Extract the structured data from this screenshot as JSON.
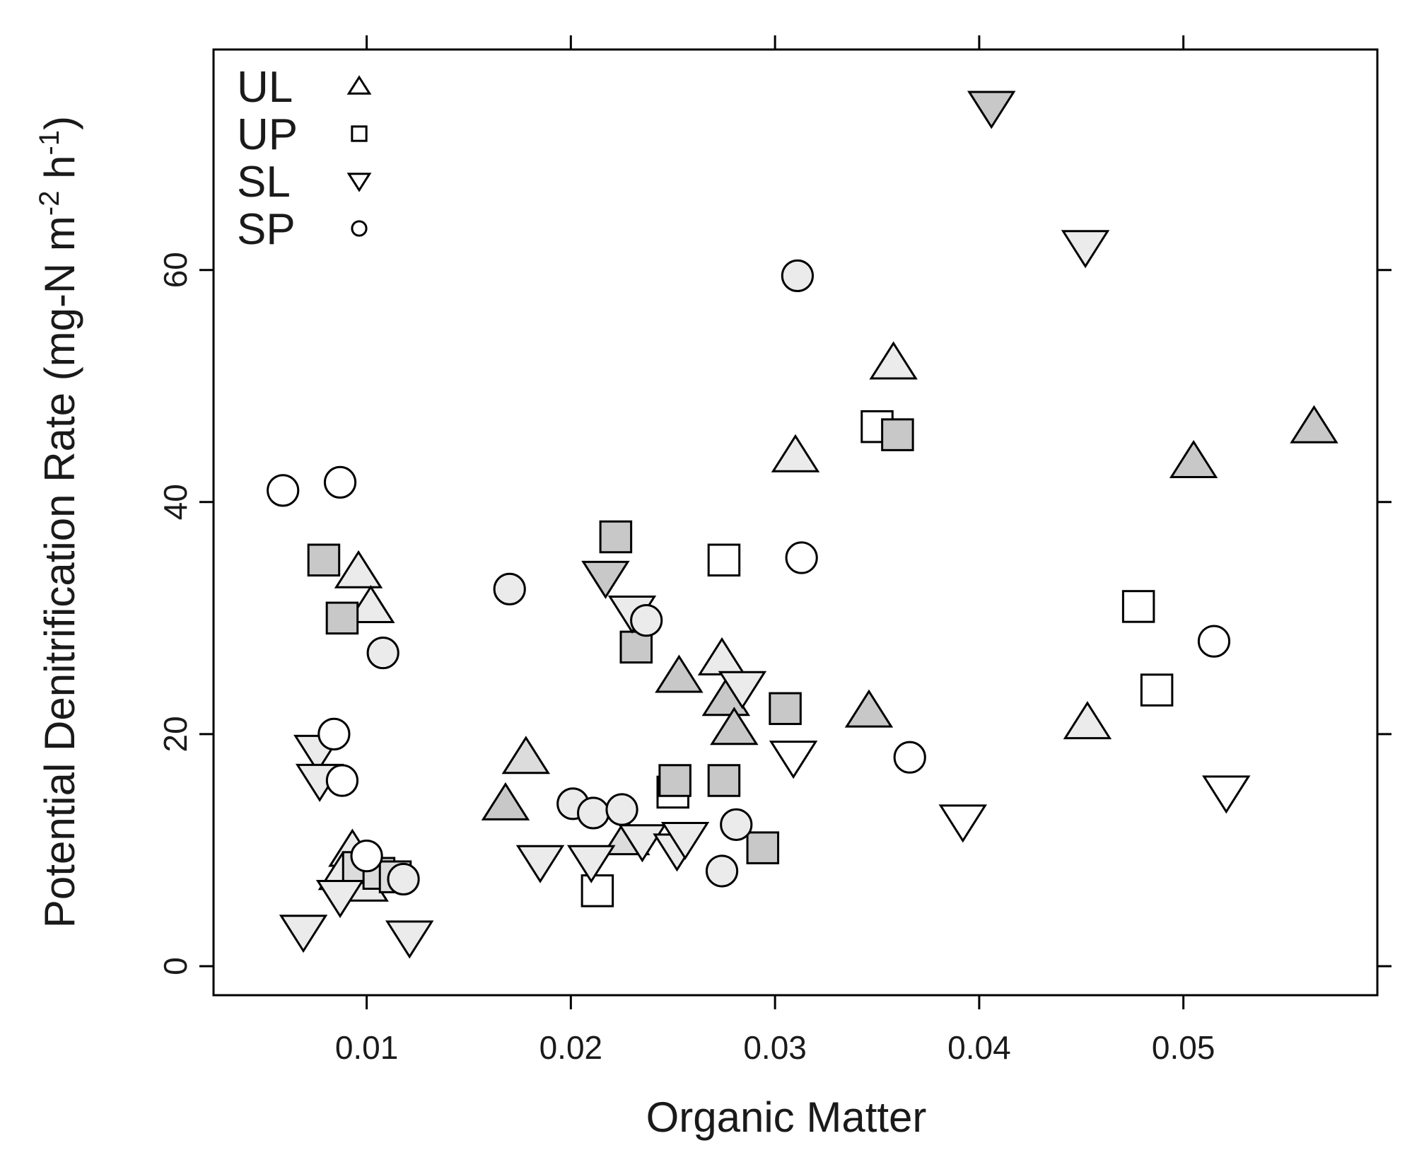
{
  "chart_data": {
    "type": "scatter",
    "xlabel": "Organic Matter",
    "ylabel": "Potential Denitrification Rate (mg-N m",
    "ylabel_sup1": "-2",
    "ylabel_mid": " h",
    "ylabel_sup2": "-1",
    "ylabel_end": ")",
    "xlim": [
      0.0025,
      0.0595
    ],
    "ylim": [
      -2.5,
      79
    ],
    "x_ticks": [
      0.01,
      0.02,
      0.03,
      0.04,
      0.05
    ],
    "x_tick_labels": [
      "0.01",
      "0.02",
      "0.03",
      "0.04",
      "0.05"
    ],
    "y_ticks": [
      0,
      20,
      40,
      60
    ],
    "y_tick_labels": [
      "0",
      "20",
      "40",
      "60"
    ],
    "grid": false,
    "legend_position": "top-left",
    "legend": [
      {
        "label": "UL",
        "shape": "triangle-up"
      },
      {
        "label": "UP",
        "shape": "square"
      },
      {
        "label": "SL",
        "shape": "triangle-down"
      },
      {
        "label": "SP",
        "shape": "circle"
      }
    ],
    "fill_colors": {
      "dark": "#c8c8c8",
      "medium": "#dcdcdc",
      "light": "#ebebeb",
      "white": "#ffffff"
    },
    "series": [
      {
        "name": "UL",
        "shape": "triangle-up",
        "points": [
          {
            "x": 0.0096,
            "y": 34,
            "fill": "light"
          },
          {
            "x": 0.0102,
            "y": 31,
            "fill": "light"
          },
          {
            "x": 0.0093,
            "y": 10,
            "fill": "light"
          },
          {
            "x": 0.0088,
            "y": 8,
            "fill": "light"
          },
          {
            "x": 0.0099,
            "y": 7,
            "fill": "light"
          },
          {
            "x": 0.0168,
            "y": 14,
            "fill": "dark"
          },
          {
            "x": 0.0178,
            "y": 18,
            "fill": "medium"
          },
          {
            "x": 0.0227,
            "y": 11,
            "fill": "medium"
          },
          {
            "x": 0.0253,
            "y": 25,
            "fill": "dark"
          },
          {
            "x": 0.0274,
            "y": 26.5,
            "fill": "light"
          },
          {
            "x": 0.0276,
            "y": 23,
            "fill": "dark"
          },
          {
            "x": 0.028,
            "y": 20.5,
            "fill": "dark"
          },
          {
            "x": 0.031,
            "y": 44,
            "fill": "light"
          },
          {
            "x": 0.0346,
            "y": 22,
            "fill": "dark"
          },
          {
            "x": 0.0358,
            "y": 52,
            "fill": "light"
          },
          {
            "x": 0.0453,
            "y": 21,
            "fill": "light"
          },
          {
            "x": 0.0505,
            "y": 43.5,
            "fill": "dark"
          },
          {
            "x": 0.0564,
            "y": 46.5,
            "fill": "dark"
          }
        ]
      },
      {
        "name": "UP",
        "shape": "square",
        "points": [
          {
            "x": 0.0079,
            "y": 35,
            "fill": "dark"
          },
          {
            "x": 0.0088,
            "y": 30,
            "fill": "dark"
          },
          {
            "x": 0.0096,
            "y": 8.5,
            "fill": "medium"
          },
          {
            "x": 0.0106,
            "y": 8,
            "fill": "medium"
          },
          {
            "x": 0.0114,
            "y": 7.7,
            "fill": "medium"
          },
          {
            "x": 0.0213,
            "y": 6.5,
            "fill": "white"
          },
          {
            "x": 0.0222,
            "y": 37,
            "fill": "dark"
          },
          {
            "x": 0.0232,
            "y": 27.5,
            "fill": "dark"
          },
          {
            "x": 0.025,
            "y": 15,
            "fill": "white"
          },
          {
            "x": 0.0251,
            "y": 16,
            "fill": "dark"
          },
          {
            "x": 0.0275,
            "y": 35,
            "fill": "white"
          },
          {
            "x": 0.0275,
            "y": 16,
            "fill": "dark"
          },
          {
            "x": 0.0294,
            "y": 10.2,
            "fill": "dark"
          },
          {
            "x": 0.0305,
            "y": 22.2,
            "fill": "dark"
          },
          {
            "x": 0.035,
            "y": 46.5,
            "fill": "white"
          },
          {
            "x": 0.036,
            "y": 45.8,
            "fill": "dark"
          },
          {
            "x": 0.0478,
            "y": 31,
            "fill": "white"
          },
          {
            "x": 0.0487,
            "y": 23.8,
            "fill": "white"
          }
        ]
      },
      {
        "name": "SL",
        "shape": "triangle-down",
        "points": [
          {
            "x": 0.0069,
            "y": 3,
            "fill": "light"
          },
          {
            "x": 0.0076,
            "y": 18.5,
            "fill": "light"
          },
          {
            "x": 0.0077,
            "y": 16,
            "fill": "light"
          },
          {
            "x": 0.0087,
            "y": 6,
            "fill": "light"
          },
          {
            "x": 0.0121,
            "y": 2.5,
            "fill": "light"
          },
          {
            "x": 0.0185,
            "y": 9,
            "fill": "light"
          },
          {
            "x": 0.021,
            "y": 9,
            "fill": "light"
          },
          {
            "x": 0.0217,
            "y": 33.5,
            "fill": "dark"
          },
          {
            "x": 0.023,
            "y": 30.5,
            "fill": "light"
          },
          {
            "x": 0.0235,
            "y": 10.8,
            "fill": "light"
          },
          {
            "x": 0.0252,
            "y": 10,
            "fill": "light"
          },
          {
            "x": 0.0256,
            "y": 11,
            "fill": "light"
          },
          {
            "x": 0.0284,
            "y": 24,
            "fill": "light"
          },
          {
            "x": 0.0309,
            "y": 18,
            "fill": "white"
          },
          {
            "x": 0.0392,
            "y": 12.5,
            "fill": "white"
          },
          {
            "x": 0.0406,
            "y": 74,
            "fill": "dark"
          },
          {
            "x": 0.0452,
            "y": 62,
            "fill": "light"
          },
          {
            "x": 0.0521,
            "y": 15,
            "fill": "white"
          }
        ]
      },
      {
        "name": "SP",
        "shape": "circle",
        "points": [
          {
            "x": 0.0059,
            "y": 41,
            "fill": "white"
          },
          {
            "x": 0.0084,
            "y": 20,
            "fill": "white"
          },
          {
            "x": 0.0087,
            "y": 41.7,
            "fill": "white"
          },
          {
            "x": 0.0088,
            "y": 16,
            "fill": "white"
          },
          {
            "x": 0.01,
            "y": 9.5,
            "fill": "white"
          },
          {
            "x": 0.0108,
            "y": 27,
            "fill": "light"
          },
          {
            "x": 0.0118,
            "y": 7.5,
            "fill": "light"
          },
          {
            "x": 0.017,
            "y": 32.5,
            "fill": "light"
          },
          {
            "x": 0.0201,
            "y": 14,
            "fill": "light"
          },
          {
            "x": 0.0211,
            "y": 13.2,
            "fill": "light"
          },
          {
            "x": 0.0225,
            "y": 13.5,
            "fill": "light"
          },
          {
            "x": 0.0237,
            "y": 29.8,
            "fill": "light"
          },
          {
            "x": 0.0274,
            "y": 8.2,
            "fill": "light"
          },
          {
            "x": 0.0281,
            "y": 12.2,
            "fill": "light"
          },
          {
            "x": 0.0311,
            "y": 59.5,
            "fill": "light"
          },
          {
            "x": 0.0313,
            "y": 35.2,
            "fill": "white"
          },
          {
            "x": 0.0366,
            "y": 18,
            "fill": "white"
          },
          {
            "x": 0.0515,
            "y": 28,
            "fill": "white"
          }
        ]
      }
    ]
  }
}
